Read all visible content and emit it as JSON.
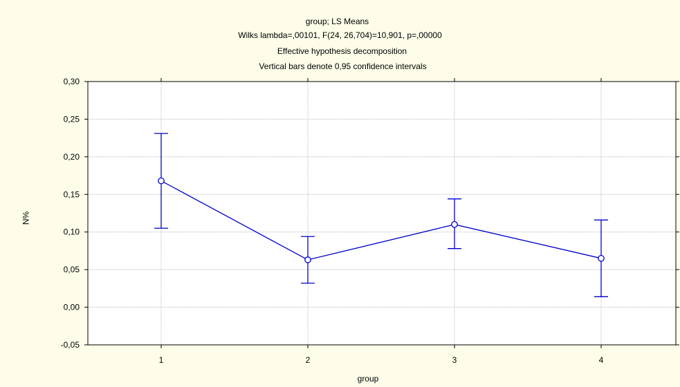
{
  "chart_data": {
    "type": "line",
    "title": "group; LS Means",
    "subtitle_lines": [
      "Wilks lambda=,00101, F(24, 26,704)=10,901, p=,00000",
      "Effective hypothesis decomposition",
      "Vertical bars denote 0,95 confidence intervals"
    ],
    "xlabel": "group",
    "ylabel": "%N",
    "categories": [
      "1",
      "2",
      "3",
      "4"
    ],
    "series": [
      {
        "values": [
          0.168,
          0.063,
          0.11,
          0.065
        ],
        "ci_lower": [
          0.105,
          0.032,
          0.078,
          0.014
        ],
        "ci_upper": [
          0.231,
          0.094,
          0.144,
          0.116
        ]
      }
    ],
    "ylim": [
      -0.05,
      0.3
    ],
    "yticks": [
      "-0,05",
      "0,00",
      "0,05",
      "0,10",
      "0,15",
      "0,20",
      "0,25",
      "0,30"
    ],
    "grid": true,
    "colors": {
      "line": "#0000cc",
      "background": "#fdfde9",
      "plot_background": "#ffffff",
      "grid": "#b8b8b8"
    }
  }
}
